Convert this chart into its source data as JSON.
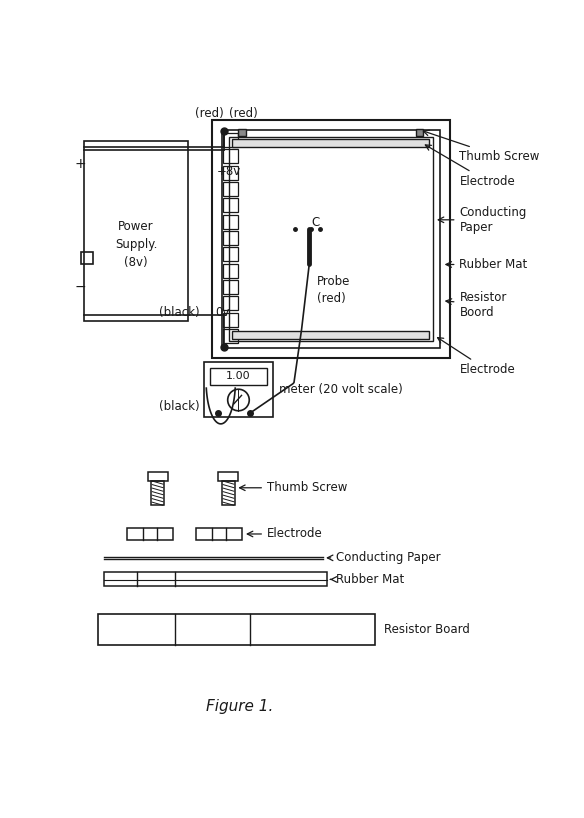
{
  "bg_color": "#ffffff",
  "line_color": "#1a1a1a",
  "title": "Figure 1.",
  "labels": {
    "red": "(red)",
    "plus8v": "+8v",
    "zero_v": "0v",
    "black_label": "(black)",
    "power_supply_line1": "Power",
    "power_supply_line2": "Supply.",
    "power_supply_line3": "(8v)",
    "thumb_screw": "Thumb Screw",
    "electrode_top": "Electrode",
    "conducting_paper": "Conducting\nPaper",
    "rubber_mat": "Rubber Mat",
    "resistor_board": "Resistor\nBoord",
    "electrode_bottom": "Electrode",
    "probe_red": "Probe\n(red)",
    "c_label": "C",
    "black_meter": "(black)",
    "meter_label": "meter (20 volt scale)",
    "meter_display": "1.00",
    "thumb_screw2": "Thumb Screw",
    "electrode2": "Electrode",
    "conducting_paper2": "Conducting Paper",
    "rubber_mat2": "Rubber Mat",
    "resistor_board2": "Resistor Board"
  }
}
